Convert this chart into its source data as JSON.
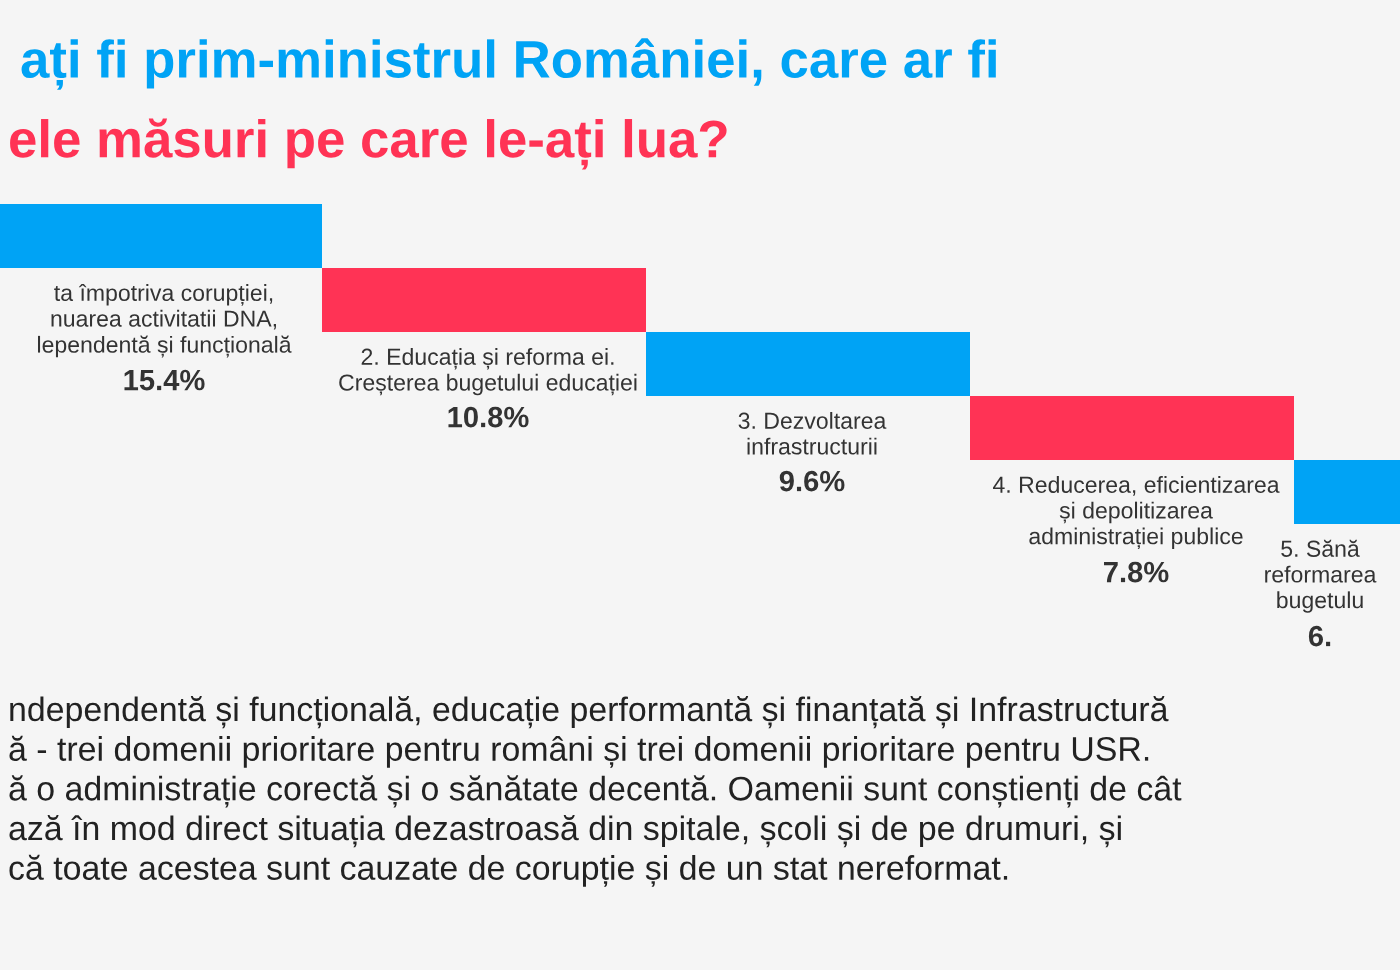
{
  "chart_data": {
    "type": "other",
    "title": "ați fi prim-ministrul României, care ar fi",
    "subtitle": "ele măsuri pe care le-ați lua?",
    "categories": [
      "ta împotriva corupției,\nnuarea activitatii DNA,\nlependentă și funcțională",
      "2. Educația și reforma ei.\nCreșterea bugetului educației",
      "3. Dezvoltarea\ninfrastructurii",
      "4. Reducerea, eficientizarea\nși depolitizarea\nadministrației publice",
      "5. Sănă\nreformarea\nbugetulu"
    ],
    "values": [
      15.4,
      10.8,
      9.6,
      7.8,
      null
    ],
    "value_labels": [
      "15.4%",
      "10.8%",
      "9.6%",
      "7.8%",
      "6."
    ],
    "colors": [
      "#00a3f5",
      "#ff3355",
      "#00a3f5",
      "#ff3355",
      "#00a3f5"
    ],
    "annotations": [
      "ndependentă și funcțională, educație performantă și finanțată și Infrastructură\nă - trei domenii prioritare pentru români și trei domenii prioritare pentru USR.\nă o administrație corectă și o sănătate decentă. Oamenii sunt conștienți de cât\nază în mod direct situația dezastroasă din spitale, școli și de pe drumuri, și\ncă toate acestea sunt cauzate de corupție și de un stat nereformat."
    ]
  }
}
